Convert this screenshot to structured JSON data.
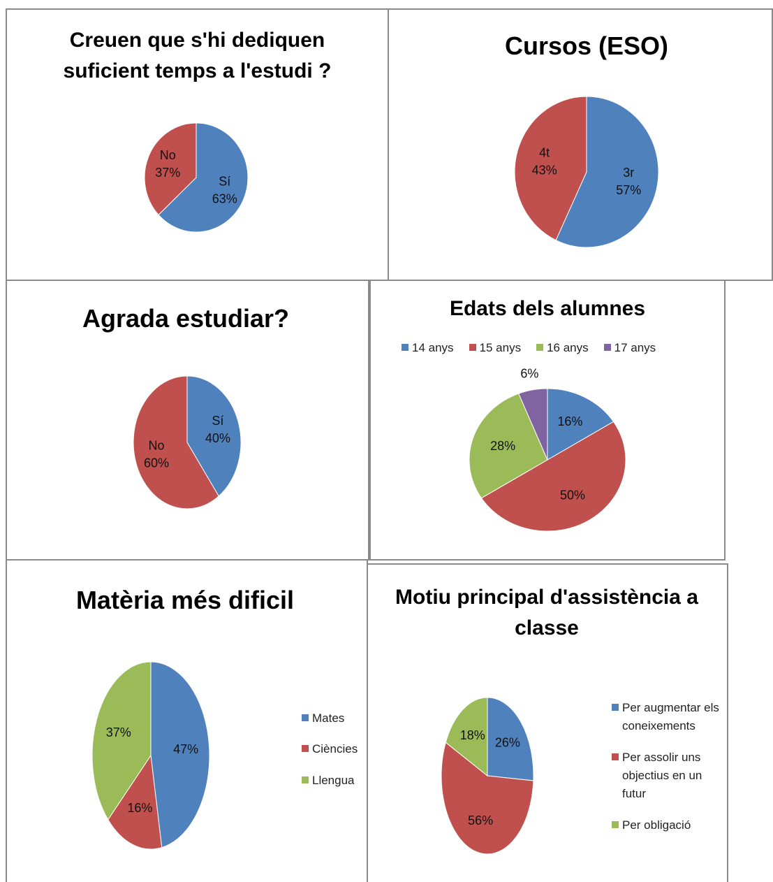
{
  "chart_data": [
    {
      "type": "pie",
      "title": "Creuen que s'hi dediquen suficient temps a l'estudi ?",
      "categories": [
        "Sí",
        "No"
      ],
      "values": [
        63,
        37
      ],
      "value_labels": [
        "63%",
        "37%"
      ],
      "colors": [
        "#4f81bd",
        "#c0504d"
      ],
      "category_labels": true
    },
    {
      "type": "pie",
      "title": "Cursos (ESO)",
      "categories": [
        "3r",
        "4t"
      ],
      "values": [
        57,
        43
      ],
      "value_labels": [
        "57%",
        "43%"
      ],
      "colors": [
        "#4f81bd",
        "#c0504d"
      ],
      "category_labels": true
    },
    {
      "type": "pie",
      "title": "Agrada estudiar?",
      "categories": [
        "Sí",
        "No"
      ],
      "values": [
        40,
        60
      ],
      "value_labels": [
        "40%",
        "60%"
      ],
      "colors": [
        "#4f81bd",
        "#c0504d"
      ],
      "category_labels": true
    },
    {
      "type": "pie",
      "title": "Edats dels alumnes",
      "categories": [
        "14 anys",
        "15 anys",
        "16 anys",
        "17 anys"
      ],
      "values": [
        16,
        50,
        28,
        6
      ],
      "value_labels": [
        "16%",
        "50%",
        "28%",
        "6%"
      ],
      "colors": [
        "#4f81bd",
        "#c0504d",
        "#9bbb59",
        "#8064a2"
      ],
      "legend": "top"
    },
    {
      "type": "pie",
      "title": "Matèria més dificil",
      "categories": [
        "Mates",
        "Ciències",
        "Llengua"
      ],
      "values": [
        47,
        16,
        37
      ],
      "value_labels": [
        "47%",
        "16%",
        "37%"
      ],
      "colors": [
        "#4f81bd",
        "#c0504d",
        "#9bbb59"
      ],
      "legend": "right"
    },
    {
      "type": "pie",
      "title": "Motiu principal d'assistència a classe",
      "categories": [
        "Per augmentar els coneixements",
        "Per assolir uns objectius en un futur",
        "Per obligació"
      ],
      "values": [
        26,
        56,
        18
      ],
      "value_labels": [
        "26%",
        "56%",
        "18%"
      ],
      "colors": [
        "#4f81bd",
        "#c0504d",
        "#9bbb59"
      ],
      "legend": "right"
    }
  ]
}
